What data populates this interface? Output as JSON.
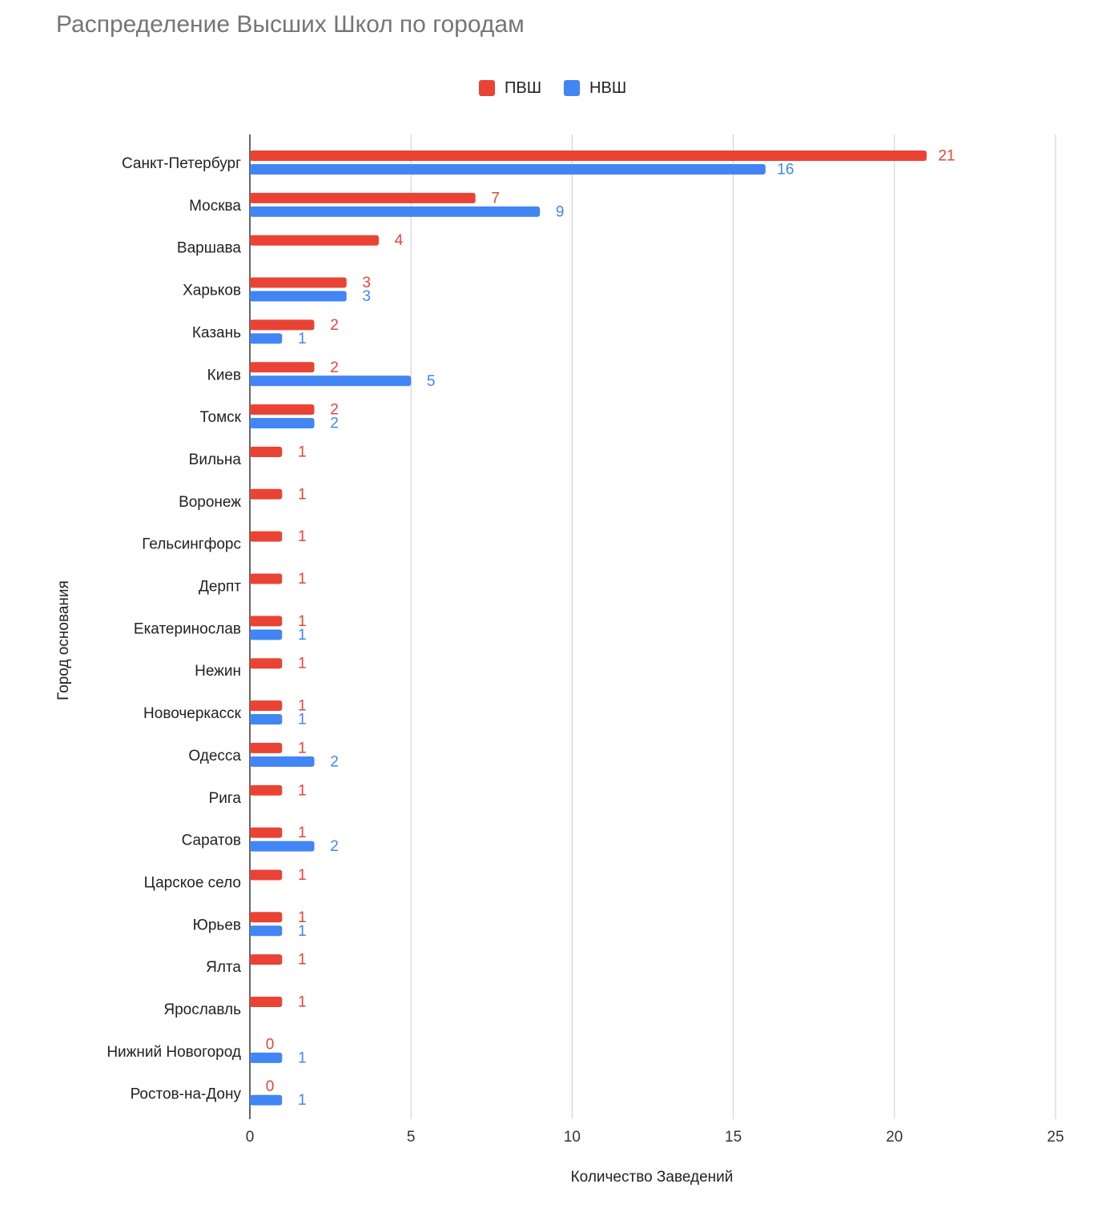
{
  "chart_data": {
    "type": "bar",
    "orientation": "horizontal",
    "title": "Распределение Высших Школ по городам",
    "xlabel": "Количество Заведений",
    "ylabel": "Город основания",
    "xlim": [
      0,
      25
    ],
    "xticks": [
      0,
      5,
      10,
      15,
      20,
      25
    ],
    "grid": true,
    "legend_position": "top-center",
    "categories": [
      "Санкт-Петербург",
      "Москва",
      "Варшава",
      "Харьков",
      "Казань",
      "Киев",
      "Томск",
      "Вильна",
      "Воронеж",
      "Гельсингфорс",
      "Дерпт",
      "Екатеринослав",
      "Нежин",
      "Новочеркасск",
      "Одесса",
      "Рига",
      "Саратов",
      "Царское село",
      "Юрьев",
      "Ялта",
      "Ярославль",
      "Нижний Новогород",
      "Ростов-на-Дону"
    ],
    "series": [
      {
        "name": "ПВШ",
        "color": "#ea4335",
        "values": [
          21,
          7,
          4,
          3,
          2,
          2,
          2,
          1,
          1,
          1,
          1,
          1,
          1,
          1,
          1,
          1,
          1,
          1,
          1,
          1,
          1,
          0,
          0
        ]
      },
      {
        "name": "НВШ",
        "color": "#4285f4",
        "values": [
          16,
          9,
          null,
          3,
          1,
          5,
          2,
          null,
          null,
          null,
          null,
          1,
          null,
          1,
          2,
          null,
          2,
          null,
          1,
          null,
          null,
          1,
          1
        ]
      }
    ]
  }
}
